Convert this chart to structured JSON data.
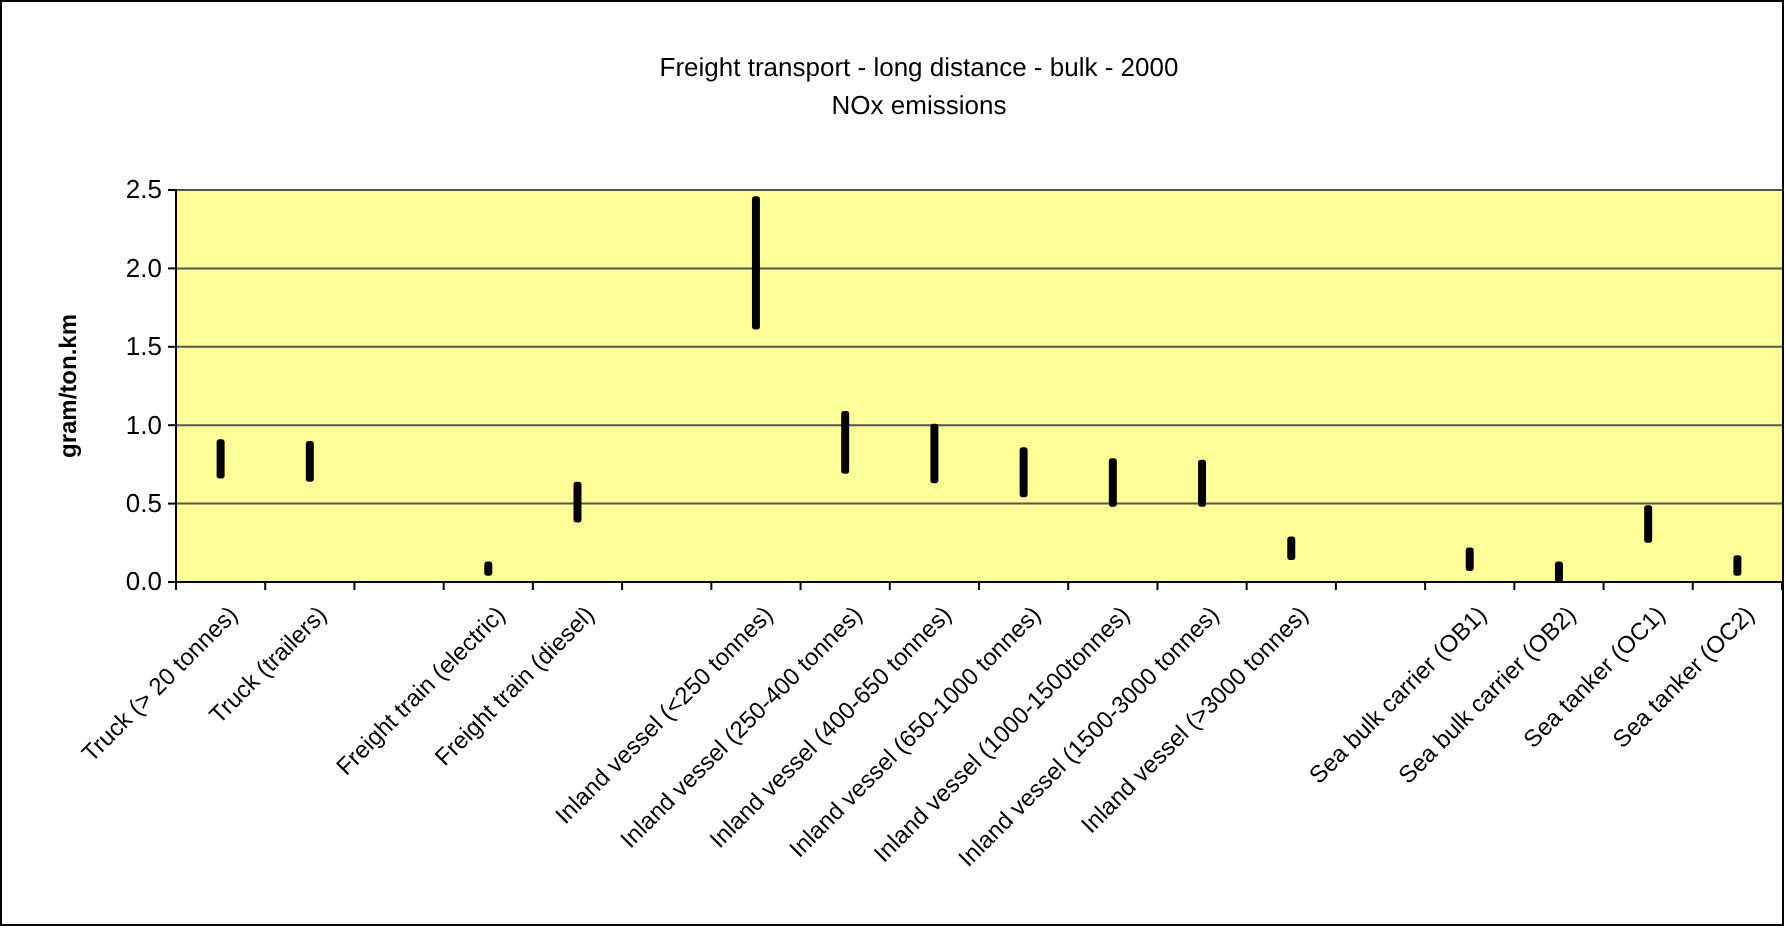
{
  "chart_data": {
    "type": "bar",
    "title": "Freight transport - long distance - bulk - 2000",
    "subtitle": "NOx emissions",
    "ylabel": "gram/ton.km",
    "categories": [
      "Truck (> 20 tonnes)",
      "Truck (trailers)",
      null,
      "Freight train (electric)",
      "Freight train (diesel)",
      null,
      "Inland vessel (<250 tonnes)",
      "Inland vessel (250-400 tonnes)",
      "Inland vessel (400-650 tonnes)",
      "Inland vessel (650-1000 tonnes)",
      "Inland vessel (1000-1500tonnes)",
      "Inland vessel (1500-3000 tonnes)",
      "Inland vessel (>3000 tonnes)",
      null,
      "Sea bulk carrier (OB1)",
      "Sea bulk carrier (OB2)",
      "Sea tanker (OC1)",
      "Sea tanker (OC2)"
    ],
    "base": [
      0.66,
      0.64,
      null,
      0.04,
      0.38,
      null,
      1.61,
      0.69,
      0.63,
      0.54,
      0.48,
      0.48,
      0.14,
      null,
      0.07,
      0,
      0.25,
      0.04
    ],
    "values": [
      0.25,
      0.26,
      null,
      0.09,
      0.26,
      null,
      0.85,
      0.4,
      0.38,
      0.32,
      0.31,
      0.3,
      0.15,
      null,
      0.15,
      0.13,
      0.24,
      0.13
    ],
    "color": "#000000",
    "ylim": [
      0,
      2.5
    ],
    "yticks": [
      {
        "value": 0,
        "label": "0.0"
      },
      {
        "value": 0.5,
        "label": "0.5"
      },
      {
        "value": 1,
        "label": "1.0"
      },
      {
        "value": 1.5,
        "label": "1.5"
      },
      {
        "value": 2,
        "label": "2.0"
      },
      {
        "value": 2.5,
        "label": "2.5"
      }
    ],
    "grid": "y"
  }
}
